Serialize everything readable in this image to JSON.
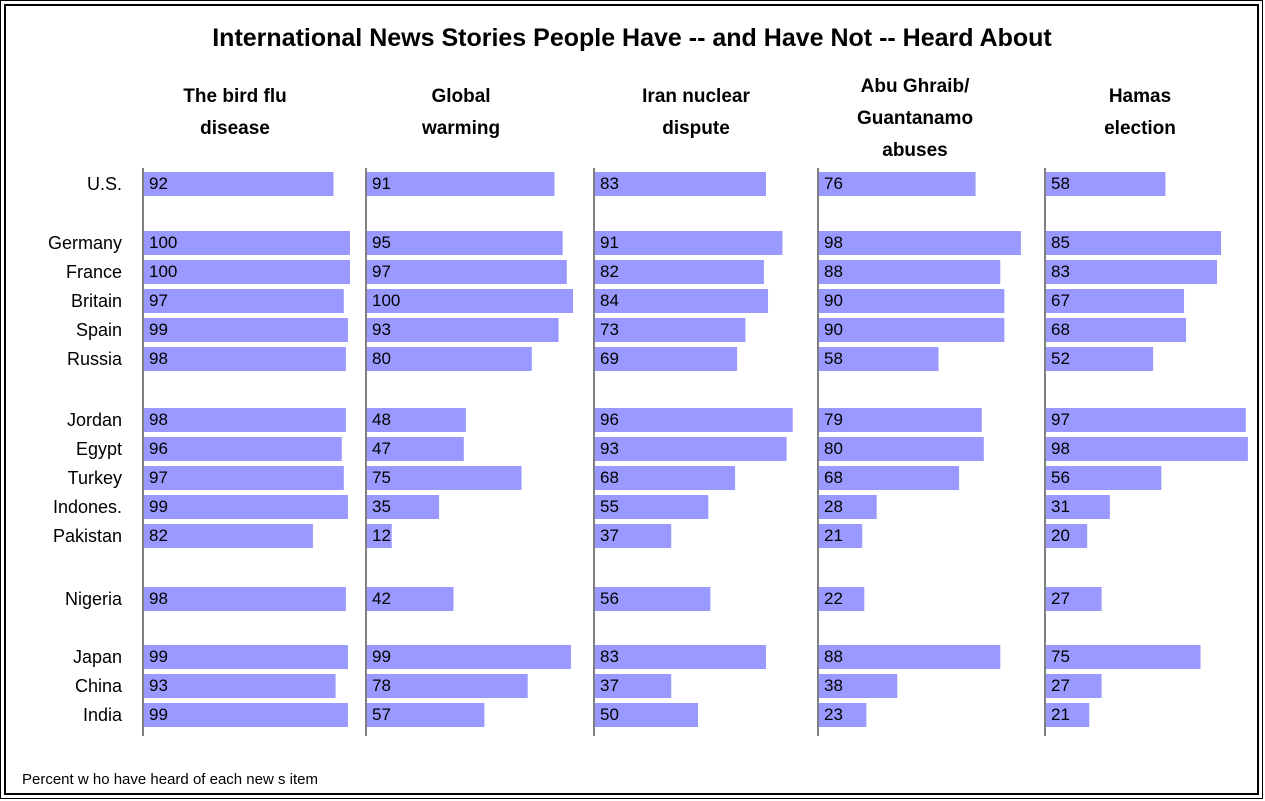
{
  "chart_data": {
    "type": "bar",
    "title": "International News Stories People Have -- and Have Not -- Heard About",
    "note": "Percent w ho have heard of each new s item",
    "categories": [
      "U.S.",
      "Germany",
      "France",
      "Britain",
      "Spain",
      "Russia",
      "Jordan",
      "Egypt",
      "Turkey",
      "Indones.",
      "Pakistan",
      "Nigeria",
      "Japan",
      "China",
      "India"
    ],
    "series": [
      {
        "name": "The bird flu disease",
        "header_lines": [
          "The bird flu",
          "disease"
        ],
        "values": [
          92,
          100,
          100,
          97,
          99,
          98,
          98,
          96,
          97,
          99,
          82,
          98,
          99,
          93,
          99
        ]
      },
      {
        "name": "Global warming",
        "header_lines": [
          "Global",
          "warming"
        ],
        "values": [
          91,
          95,
          97,
          100,
          93,
          80,
          48,
          47,
          75,
          35,
          12,
          42,
          99,
          78,
          57
        ]
      },
      {
        "name": "Iran nuclear dispute",
        "header_lines": [
          "Iran nuclear",
          "dispute"
        ],
        "values": [
          83,
          91,
          82,
          84,
          73,
          69,
          96,
          93,
          68,
          55,
          37,
          56,
          83,
          37,
          50
        ]
      },
      {
        "name": "Abu Ghraib/ Guantanamo abuses",
        "header_lines": [
          "Abu Ghraib/",
          "Guantanamo",
          "abuses"
        ],
        "values": [
          76,
          98,
          88,
          90,
          90,
          58,
          79,
          80,
          68,
          28,
          21,
          22,
          88,
          38,
          23
        ]
      },
      {
        "name": "Hamas election",
        "header_lines": [
          "Hamas",
          "election"
        ],
        "values": [
          58,
          85,
          83,
          67,
          68,
          52,
          97,
          98,
          56,
          31,
          20,
          27,
          75,
          27,
          21
        ]
      }
    ],
    "xlim": [
      0,
      100
    ],
    "bar_color": "#9999ff",
    "grid": false,
    "legend": "none"
  }
}
